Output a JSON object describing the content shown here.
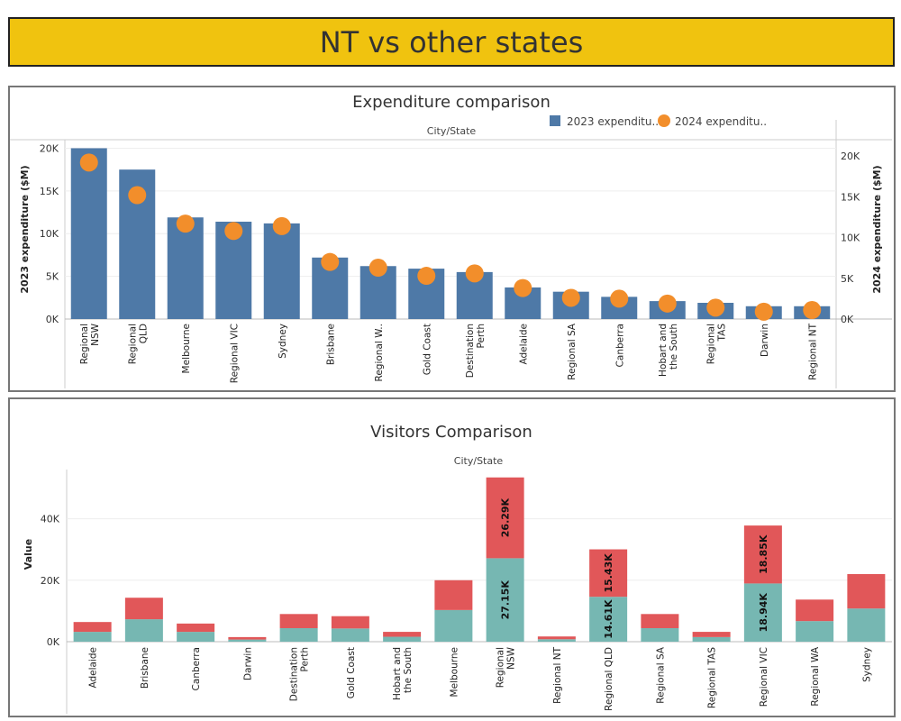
{
  "header": {
    "title": "NT vs other states"
  },
  "colors": {
    "banner": "#f0c30f",
    "bar_2023": "#4e79a7",
    "dot_2024": "#f28e2b",
    "visitors_bottom": "#76b7b2",
    "visitors_top": "#e15759"
  },
  "chart_data": [
    {
      "type": "bar",
      "title": "Expenditure comparison",
      "xlabel": "City/State",
      "ylabel": "2023 expenditure ($M)",
      "ylabel_right": "2024 expenditure ($M)",
      "ylim": [
        0,
        21000
      ],
      "ylim_right": [
        0,
        22000
      ],
      "yticks": [
        "0K",
        "5K",
        "10K",
        "15K",
        "20K"
      ],
      "yticks_right": [
        "0K",
        "5K",
        "10K",
        "15K",
        "20K"
      ],
      "legend_position": "top-right",
      "categories": [
        [
          "Regional",
          "NSW"
        ],
        [
          "Regional",
          "QLD"
        ],
        [
          "Melbourne"
        ],
        [
          "Regional VIC"
        ],
        [
          "Sydney"
        ],
        [
          "Brisbane"
        ],
        [
          "Regional W.."
        ],
        [
          "Gold Coast"
        ],
        [
          "Destination",
          "Perth"
        ],
        [
          "Adelaide"
        ],
        [
          "Regional SA"
        ],
        [
          "Canberra"
        ],
        [
          "Hobart and",
          "the South"
        ],
        [
          "Regional",
          "TAS"
        ],
        [
          "Darwin"
        ],
        [
          "Regional NT"
        ]
      ],
      "series": [
        {
          "name": "2023 expenditu..",
          "mark": "bar",
          "values": [
            20000,
            17500,
            11900,
            11400,
            11200,
            7200,
            6200,
            5900,
            5500,
            3700,
            3200,
            2600,
            2100,
            1900,
            1500,
            1500
          ]
        },
        {
          "name": "2024 expenditu..",
          "mark": "circle",
          "values": [
            19200,
            15200,
            11700,
            10800,
            11400,
            7000,
            6300,
            5300,
            5600,
            3800,
            2600,
            2500,
            1900,
            1400,
            900,
            1100
          ]
        }
      ]
    },
    {
      "type": "bar",
      "stacked": true,
      "title": "Visitors Comparison",
      "xlabel": "City/State",
      "ylabel": "Value",
      "ylim": [
        0,
        56000
      ],
      "yticks": [
        "0K",
        "20K",
        "40K"
      ],
      "categories": [
        [
          "Adelaide"
        ],
        [
          "Brisbane"
        ],
        [
          "Canberra"
        ],
        [
          "Darwin"
        ],
        [
          "Destination",
          "Perth"
        ],
        [
          "Gold Coast"
        ],
        [
          "Hobart and",
          "the South"
        ],
        [
          "Melbourne"
        ],
        [
          "Regional",
          "NSW"
        ],
        [
          "Regional NT"
        ],
        [
          "Regional QLD"
        ],
        [
          "Regional SA"
        ],
        [
          "Regional TAS"
        ],
        [
          "Regional VIC"
        ],
        [
          "Regional WA"
        ],
        [
          "Sydney"
        ]
      ],
      "series": [
        {
          "name": "",
          "values": [
            3200,
            7300,
            3200,
            700,
            4400,
            4300,
            1600,
            10300,
            27150,
            800,
            14610,
            4400,
            1500,
            18940,
            6700,
            10800
          ],
          "labels": [
            "",
            "",
            "",
            "",
            "",
            "",
            "",
            "",
            "27.15K",
            "",
            "14.61K",
            "",
            "",
            "18.94K",
            "",
            ""
          ]
        },
        {
          "name": "",
          "values": [
            3200,
            7000,
            2700,
            800,
            4600,
            4000,
            1600,
            9700,
            26290,
            900,
            15430,
            4600,
            1700,
            18850,
            7000,
            11200
          ],
          "labels": [
            "",
            "",
            "",
            "",
            "",
            "",
            "",
            "",
            "26.29K",
            "",
            "15.43K",
            "",
            "",
            "18.85K",
            "",
            ""
          ]
        }
      ]
    }
  ]
}
